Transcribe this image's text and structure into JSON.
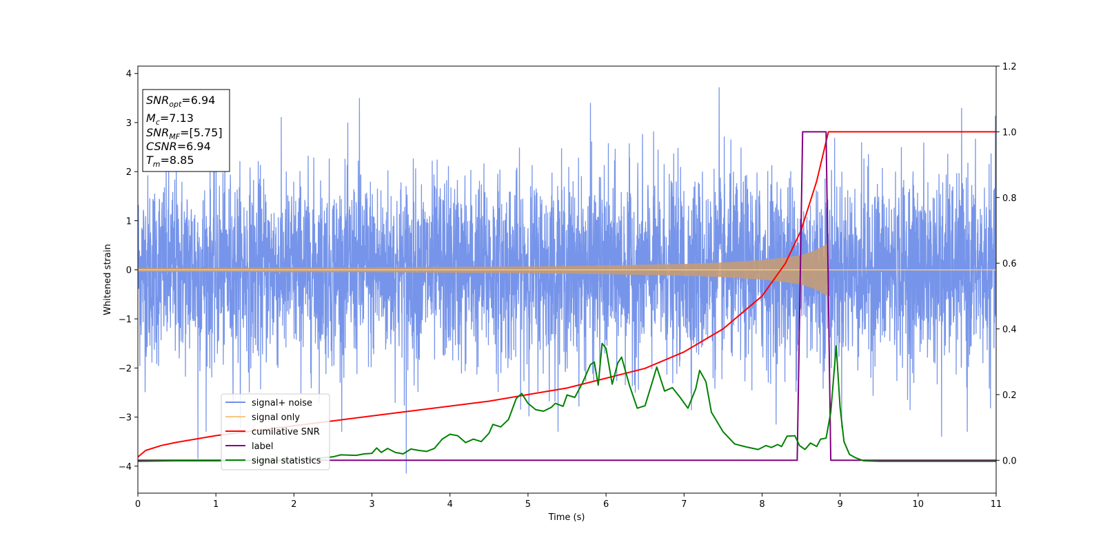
{
  "chart_data": {
    "type": "line",
    "title": "",
    "xlabel": "Time (s)",
    "ylabel": "Whitened strain",
    "y2label": "",
    "xlim": [
      0,
      11
    ],
    "ylim": [
      -4.55,
      4.15
    ],
    "y2lim": [
      -0.1,
      1.2
    ],
    "xticks": [
      "0",
      "1",
      "2",
      "3",
      "4",
      "5",
      "6",
      "7",
      "8",
      "9",
      "10",
      "11"
    ],
    "yticks": [
      "−4",
      "−3",
      "−2",
      "−1",
      "0",
      "1",
      "2",
      "3",
      "4"
    ],
    "y2ticks": [
      "0.0",
      "0.2",
      "0.4",
      "0.6",
      "0.8",
      "1.0",
      "1.2"
    ],
    "grid": false,
    "legend_position": "lower-left",
    "legend": [
      "signal+ noise",
      "signal only",
      "cumilative SNR",
      "label",
      "signal statistics"
    ],
    "colors": {
      "noise": "#6f8ee8",
      "signal": "#f5c77e",
      "signal_overlap": "#c49b78",
      "cumulative_snr": "#ff0000",
      "label": "#800080",
      "statistics": "#008000"
    },
    "annotation": {
      "snr_opt": "6.94",
      "mc": "7.13",
      "snr_mf": "[5.75]",
      "csnr": "6.94",
      "tm": "8.85"
    },
    "series": [
      {
        "name": "signal+ noise",
        "axis": "left",
        "sample_dt": 0.0025,
        "amplitude_std": 1.0,
        "peaks": [
          {
            "x": 0.77,
            "y": -3.85
          },
          {
            "x": 2.84,
            "y": 3.5
          },
          {
            "x": 3.44,
            "y": -4.15
          },
          {
            "x": 5.8,
            "y": 3.4
          },
          {
            "x": 7.45,
            "y": 3.72
          },
          {
            "x": 10.3,
            "y": -3.4
          },
          {
            "x": 10.63,
            "y": -3.3
          }
        ]
      },
      {
        "name": "signal only",
        "axis": "left",
        "t_merge": 8.85,
        "envelope": [
          [
            0.0,
            0.04
          ],
          [
            1.0,
            0.04
          ],
          [
            2.0,
            0.05
          ],
          [
            3.0,
            0.05
          ],
          [
            4.0,
            0.06
          ],
          [
            5.0,
            0.07
          ],
          [
            6.0,
            0.09
          ],
          [
            7.0,
            0.12
          ],
          [
            7.5,
            0.15
          ],
          [
            8.0,
            0.2
          ],
          [
            8.3,
            0.25
          ],
          [
            8.5,
            0.3
          ],
          [
            8.65,
            0.38
          ],
          [
            8.75,
            0.45
          ],
          [
            8.85,
            0.55
          ]
        ]
      },
      {
        "name": "cumilative SNR",
        "axis": "right",
        "points": [
          [
            0.0,
            0.01
          ],
          [
            0.1,
            0.03
          ],
          [
            0.3,
            0.045
          ],
          [
            0.5,
            0.055
          ],
          [
            1.0,
            0.075
          ],
          [
            1.5,
            0.09
          ],
          [
            2.0,
            0.105
          ],
          [
            2.5,
            0.12
          ],
          [
            3.0,
            0.135
          ],
          [
            3.5,
            0.15
          ],
          [
            4.0,
            0.165
          ],
          [
            4.5,
            0.18
          ],
          [
            5.0,
            0.2
          ],
          [
            5.5,
            0.22
          ],
          [
            6.0,
            0.25
          ],
          [
            6.5,
            0.28
          ],
          [
            7.0,
            0.33
          ],
          [
            7.5,
            0.4
          ],
          [
            8.0,
            0.5
          ],
          [
            8.3,
            0.6
          ],
          [
            8.5,
            0.7
          ],
          [
            8.7,
            0.85
          ],
          [
            8.85,
            1.0
          ],
          [
            11.0,
            1.0
          ]
        ]
      },
      {
        "name": "label",
        "axis": "right",
        "points": [
          [
            0.0,
            0.0
          ],
          [
            8.45,
            0.0
          ],
          [
            8.52,
            1.0
          ],
          [
            8.82,
            1.0
          ],
          [
            8.88,
            0.0
          ],
          [
            11.0,
            0.0
          ]
        ]
      },
      {
        "name": "signal statistics",
        "axis": "left",
        "points": [
          [
            0.0,
            -3.9
          ],
          [
            0.5,
            -3.89
          ],
          [
            1.0,
            -3.89
          ],
          [
            2.0,
            -3.88
          ],
          [
            2.5,
            -3.81
          ],
          [
            2.6,
            -3.77
          ],
          [
            2.8,
            -3.78
          ],
          [
            2.9,
            -3.75
          ],
          [
            3.0,
            -3.74
          ],
          [
            3.06,
            -3.63
          ],
          [
            3.12,
            -3.72
          ],
          [
            3.2,
            -3.64
          ],
          [
            3.3,
            -3.72
          ],
          [
            3.4,
            -3.75
          ],
          [
            3.5,
            -3.65
          ],
          [
            3.6,
            -3.68
          ],
          [
            3.7,
            -3.7
          ],
          [
            3.8,
            -3.64
          ],
          [
            3.9,
            -3.45
          ],
          [
            4.0,
            -3.35
          ],
          [
            4.1,
            -3.38
          ],
          [
            4.2,
            -3.52
          ],
          [
            4.3,
            -3.45
          ],
          [
            4.4,
            -3.5
          ],
          [
            4.5,
            -3.33
          ],
          [
            4.55,
            -3.15
          ],
          [
            4.65,
            -3.2
          ],
          [
            4.75,
            -3.05
          ],
          [
            4.85,
            -2.62
          ],
          [
            4.92,
            -2.52
          ],
          [
            5.0,
            -2.72
          ],
          [
            5.1,
            -2.85
          ],
          [
            5.2,
            -2.88
          ],
          [
            5.3,
            -2.8
          ],
          [
            5.35,
            -2.72
          ],
          [
            5.45,
            -2.78
          ],
          [
            5.5,
            -2.55
          ],
          [
            5.6,
            -2.6
          ],
          [
            5.7,
            -2.3
          ],
          [
            5.8,
            -1.93
          ],
          [
            5.85,
            -1.88
          ],
          [
            5.9,
            -2.35
          ],
          [
            5.95,
            -1.5
          ],
          [
            6.0,
            -1.6
          ],
          [
            6.08,
            -2.33
          ],
          [
            6.15,
            -1.9
          ],
          [
            6.2,
            -1.78
          ],
          [
            6.3,
            -2.35
          ],
          [
            6.4,
            -2.82
          ],
          [
            6.5,
            -2.77
          ],
          [
            6.6,
            -2.25
          ],
          [
            6.65,
            -1.98
          ],
          [
            6.75,
            -2.47
          ],
          [
            6.85,
            -2.4
          ],
          [
            6.95,
            -2.6
          ],
          [
            7.05,
            -2.82
          ],
          [
            7.15,
            -2.42
          ],
          [
            7.2,
            -2.05
          ],
          [
            7.28,
            -2.28
          ],
          [
            7.35,
            -2.9
          ],
          [
            7.5,
            -3.3
          ],
          [
            7.65,
            -3.55
          ],
          [
            7.8,
            -3.61
          ],
          [
            7.95,
            -3.66
          ],
          [
            8.05,
            -3.58
          ],
          [
            8.12,
            -3.62
          ],
          [
            8.2,
            -3.56
          ],
          [
            8.25,
            -3.6
          ],
          [
            8.32,
            -3.39
          ],
          [
            8.42,
            -3.38
          ],
          [
            8.48,
            -3.58
          ],
          [
            8.55,
            -3.66
          ],
          [
            8.62,
            -3.53
          ],
          [
            8.7,
            -3.6
          ],
          [
            8.75,
            -3.45
          ],
          [
            8.82,
            -3.43
          ],
          [
            8.88,
            -2.9
          ],
          [
            8.95,
            -1.55
          ],
          [
            9.0,
            -2.8
          ],
          [
            9.05,
            -3.5
          ],
          [
            9.12,
            -3.76
          ],
          [
            9.2,
            -3.83
          ],
          [
            9.3,
            -3.89
          ],
          [
            9.5,
            -3.9
          ],
          [
            11.0,
            -3.9
          ]
        ]
      }
    ]
  }
}
